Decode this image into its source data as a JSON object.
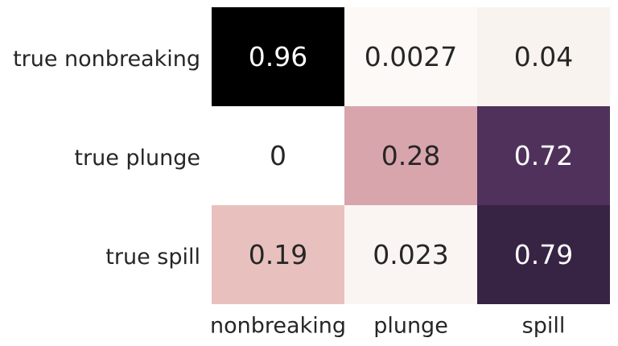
{
  "chart_data": {
    "type": "heatmap",
    "title": "",
    "row_labels": [
      "true nonbreaking",
      "true plunge",
      "true spill"
    ],
    "col_labels": [
      "nonbreaking",
      "plunge",
      "spill"
    ],
    "values": [
      [
        0.96,
        0.0027,
        0.04
      ],
      [
        0,
        0.28,
        0.72
      ],
      [
        0.19,
        0.023,
        0.79
      ]
    ],
    "value_labels": [
      [
        "0.96",
        "0.0027",
        "0.04"
      ],
      [
        "0",
        "0.28",
        "0.72"
      ],
      [
        "0.19",
        "0.023",
        "0.79"
      ]
    ],
    "colorbar": false,
    "colormap": "cubehelix-rose",
    "cell_colors": [
      [
        "#000000",
        "#fcf9f6",
        "#f8f3ee"
      ],
      [
        "#ffffff",
        "#d9a5ad",
        "#50315c"
      ],
      [
        "#e8c1be",
        "#faf5f3",
        "#372444"
      ]
    ],
    "text_colors": {
      "dark_cell": "#ffffff",
      "light_cell": "#262626"
    }
  }
}
